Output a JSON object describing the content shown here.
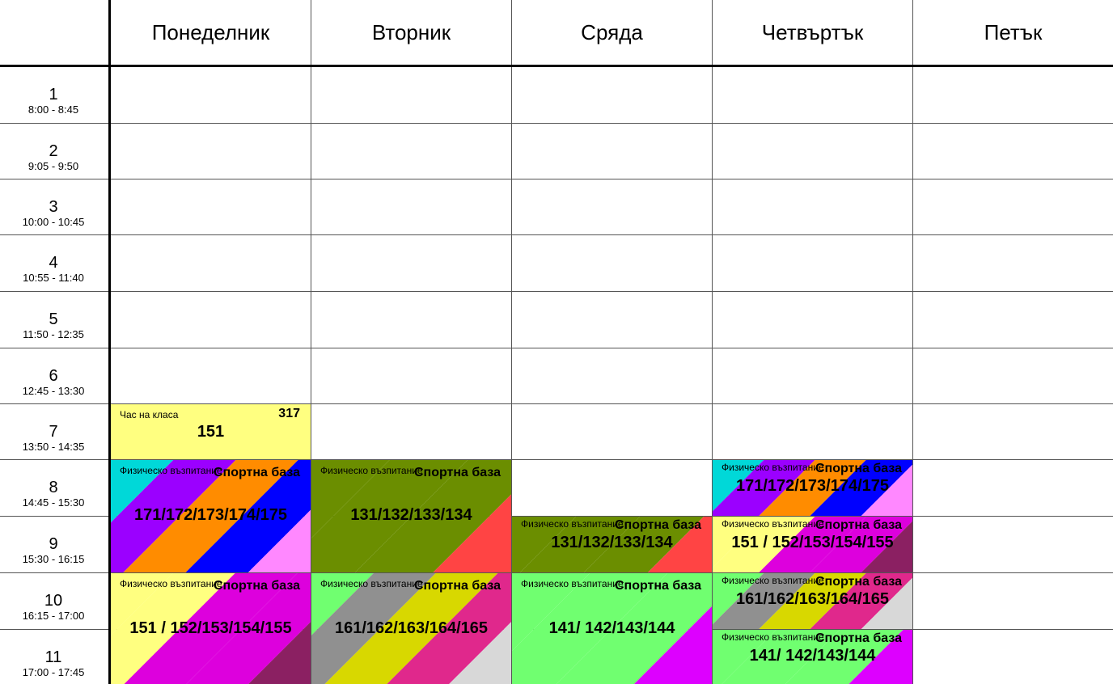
{
  "days": [
    "Понеделник",
    "Вторник",
    "Сряда",
    "Четвъртък",
    "Петък"
  ],
  "periods": [
    {
      "num": "1",
      "time": "8:00 - 8:45"
    },
    {
      "num": "2",
      "time": "9:05 - 9:50"
    },
    {
      "num": "3",
      "time": "10:00 - 10:45"
    },
    {
      "num": "4",
      "time": "10:55 - 11:40"
    },
    {
      "num": "5",
      "time": "11:50 - 12:35"
    },
    {
      "num": "6",
      "time": "12:45 - 13:30"
    },
    {
      "num": "7",
      "time": "13:50 - 14:35"
    },
    {
      "num": "8",
      "time": "14:45 - 15:30"
    },
    {
      "num": "9",
      "time": "15:30 - 16:15"
    },
    {
      "num": "10",
      "time": "16:15 - 17:00"
    },
    {
      "num": "11",
      "time": "17:00 - 17:45"
    }
  ],
  "lessons": {
    "mon_7": {
      "subject": "Час на класа",
      "room": "317",
      "groups": "151",
      "colors": [
        "#ffff80"
      ]
    },
    "mon_8_9": {
      "subject": "Физическо възпитание",
      "room": "Спортна база",
      "groups": "171/172/173/174/175",
      "colors": [
        "#00d8d8",
        "#9b00ff",
        "#ff8c00",
        "#0000ff",
        "#ff88ff"
      ]
    },
    "tue_8_9": {
      "subject": "Физическо възпитание",
      "room": "Спортна база",
      "groups": "131/132/133/134",
      "colors": [
        "#6b8e00",
        "#6b8e00",
        "#6b8e00",
        "#ff4444"
      ]
    },
    "wed_9": {
      "subject": "Физическо възпитание",
      "room": "Спортна база",
      "groups": "131/132/133/134",
      "colors": [
        "#6b8e00",
        "#6b8e00",
        "#6b8e00",
        "#ff4444"
      ]
    },
    "thu_8": {
      "subject": "Физическо възпитание",
      "room": "Спортна база",
      "groups": "171/172/173/174/175",
      "colors": [
        "#00d8d8",
        "#9b00ff",
        "#ff8c00",
        "#0000ff",
        "#ff88ff"
      ]
    },
    "thu_9": {
      "subject": "Физическо възпитание",
      "room": "Спортна база",
      "groups": "151 / 152/153/154/155",
      "colors": [
        "#ffff80",
        "#ffff80",
        "#dd00dd",
        "#dd00dd",
        "#8b2062"
      ]
    },
    "mon_10_11": {
      "subject": "Физическо възпитание",
      "room": "Спортна база",
      "groups": "151 / 152/153/154/155",
      "colors": [
        "#ffff80",
        "#ffff80",
        "#dd00dd",
        "#dd00dd",
        "#8b2062"
      ]
    },
    "tue_10_11": {
      "subject": "Физическо възпитание",
      "room": "Спортна база",
      "groups": "161/162/163/164/165",
      "colors": [
        "#70ff70",
        "#909090",
        "#d8d800",
        "#e0288c",
        "#d8d8d8"
      ]
    },
    "wed_10_11": {
      "subject": "Физическо възпитание",
      "room": "Спортна база",
      "groups": "141/ 142/143/144",
      "colors": [
        "#70ff70",
        "#70ff70",
        "#70ff70",
        "#dd00ff"
      ]
    },
    "thu_10": {
      "subject": "Физическо възпитание",
      "room": "Спортна база",
      "groups": "161/162/163/164/165",
      "colors": [
        "#70ff70",
        "#909090",
        "#d8d800",
        "#e0288c",
        "#d8d8d8"
      ]
    },
    "thu_11": {
      "subject": "Физическо възпитание",
      "room": "Спортна база",
      "groups": "141/ 142/143/144",
      "colors": [
        "#70ff70",
        "#70ff70",
        "#70ff70",
        "#dd00ff"
      ]
    }
  }
}
